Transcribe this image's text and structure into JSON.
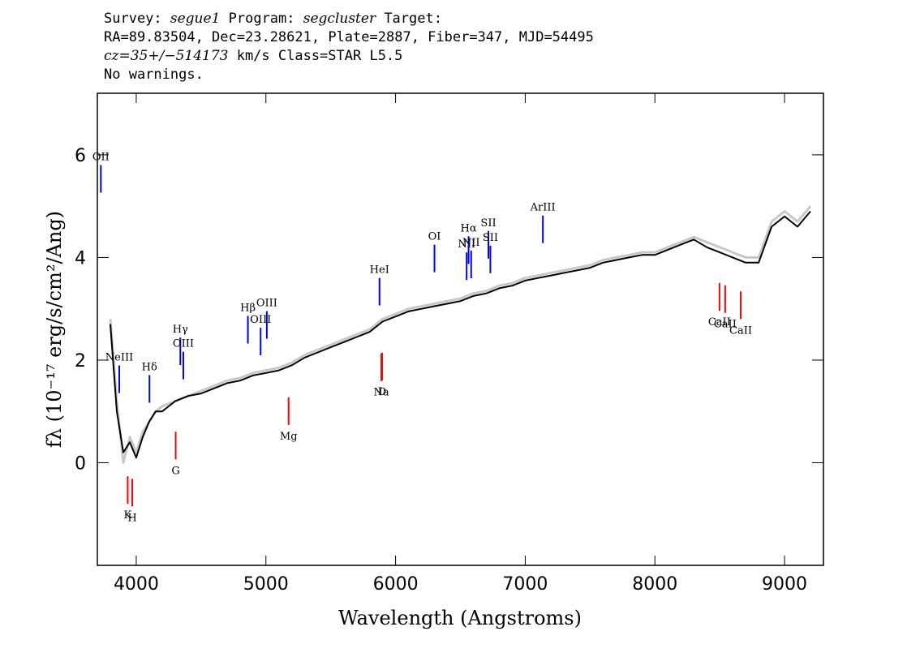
{
  "header": {
    "line1": {
      "survey_label": "Survey: ",
      "survey": "segue1",
      "program_label": " Program: ",
      "program": "segcluster",
      "target_label": " Target:"
    },
    "line2": "RA=89.83504, Dec=23.28621, Plate=2887, Fiber=347, MJD=54495",
    "line3": {
      "cz": "cz=35+/−514173",
      "rest": " km/s Class=STAR L5.5"
    },
    "line4": "No warnings."
  },
  "chart_data": {
    "type": "line",
    "title": "",
    "xlabel": "Wavelength (Angstroms)",
    "ylabel": "fλ (10⁻¹⁷ erg/s/cm²/Ang)",
    "xlim": [
      3700,
      9300
    ],
    "ylim": [
      -2,
      7.2
    ],
    "xticks": [
      4000,
      5000,
      6000,
      7000,
      8000,
      9000
    ],
    "yticks": [
      0,
      2,
      4,
      6
    ],
    "series": [
      {
        "name": "",
        "color": "#c8c8c8",
        "x": [
          3800,
          3850,
          3900,
          3950,
          4000,
          4050,
          4100,
          4150,
          4200,
          4300,
          4400,
          4500,
          4600,
          4700,
          4800,
          4900,
          5000,
          5100,
          5200,
          5300,
          5400,
          5500,
          5600,
          5700,
          5800,
          5900,
          6000,
          6100,
          6200,
          6300,
          6400,
          6500,
          6600,
          6700,
          6800,
          6900,
          7000,
          7100,
          7200,
          7300,
          7400,
          7500,
          7600,
          7700,
          7800,
          7900,
          8000,
          8100,
          8200,
          8300,
          8400,
          8500,
          8600,
          8700,
          8800,
          8900,
          9000,
          9100,
          9200
        ],
        "y": [
          2.8,
          1.2,
          0.0,
          0.5,
          0.2,
          0.6,
          0.8,
          1.0,
          1.1,
          1.2,
          1.3,
          1.4,
          1.5,
          1.6,
          1.65,
          1.75,
          1.8,
          1.85,
          1.95,
          2.1,
          2.2,
          2.3,
          2.4,
          2.5,
          2.6,
          2.8,
          2.9,
          3.0,
          3.05,
          3.1,
          3.15,
          3.2,
          3.3,
          3.35,
          3.45,
          3.5,
          3.6,
          3.65,
          3.7,
          3.75,
          3.8,
          3.85,
          3.95,
          4.0,
          4.05,
          4.1,
          4.1,
          4.2,
          4.3,
          4.4,
          4.3,
          4.2,
          4.1,
          4.0,
          4.0,
          4.7,
          4.9,
          4.7,
          5.0
        ]
      },
      {
        "name": "",
        "color": "#000000",
        "x": [
          3800,
          3850,
          3900,
          3950,
          4000,
          4050,
          4100,
          4150,
          4200,
          4300,
          4400,
          4500,
          4600,
          4700,
          4800,
          4900,
          5000,
          5100,
          5200,
          5300,
          5400,
          5500,
          5600,
          5700,
          5800,
          5900,
          6000,
          6100,
          6200,
          6300,
          6400,
          6500,
          6600,
          6700,
          6800,
          6900,
          7000,
          7100,
          7200,
          7300,
          7400,
          7500,
          7600,
          7700,
          7800,
          7900,
          8000,
          8100,
          8200,
          8300,
          8400,
          8500,
          8600,
          8700,
          8800,
          8900,
          9000,
          9100,
          9200
        ],
        "y": [
          2.7,
          1.0,
          0.2,
          0.4,
          0.1,
          0.5,
          0.8,
          1.0,
          1.0,
          1.2,
          1.3,
          1.35,
          1.45,
          1.55,
          1.6,
          1.7,
          1.75,
          1.8,
          1.9,
          2.05,
          2.15,
          2.25,
          2.35,
          2.45,
          2.55,
          2.75,
          2.85,
          2.95,
          3.0,
          3.05,
          3.1,
          3.15,
          3.25,
          3.3,
          3.4,
          3.45,
          3.55,
          3.6,
          3.65,
          3.7,
          3.75,
          3.8,
          3.9,
          3.95,
          4.0,
          4.05,
          4.05,
          4.15,
          4.25,
          4.35,
          4.2,
          4.1,
          4.0,
          3.9,
          3.9,
          4.6,
          4.8,
          4.6,
          4.9
        ]
      }
    ],
    "emission_lines": [
      {
        "label": "OII",
        "x": 3727
      },
      {
        "label": "NeIII",
        "x": 3869
      },
      {
        "label": "Hδ",
        "x": 4102
      },
      {
        "label": "Hγ",
        "x": 4340
      },
      {
        "label": "OIII",
        "x": 4363
      },
      {
        "label": "Hβ",
        "x": 4861
      },
      {
        "label": "OIII",
        "x": 4959
      },
      {
        "label": "OIII",
        "x": 5007
      },
      {
        "label": "HeI",
        "x": 5876
      },
      {
        "label": "OI",
        "x": 6300
      },
      {
        "label": "NII",
        "x": 6548
      },
      {
        "label": "Hα",
        "x": 6563
      },
      {
        "label": "NII",
        "x": 6583
      },
      {
        "label": "SII",
        "x": 6716
      },
      {
        "label": "SII",
        "x": 6731
      },
      {
        "label": "ArIII",
        "x": 7136
      }
    ],
    "absorption_lines": [
      {
        "label": "K",
        "x": 3934
      },
      {
        "label": "H",
        "x": 3969
      },
      {
        "label": "G",
        "x": 4304
      },
      {
        "label": "Mg",
        "x": 5175
      },
      {
        "label": "Na",
        "x": 5890
      },
      {
        "label": "D",
        "x": 5896
      },
      {
        "label": "CaII",
        "x": 8498
      },
      {
        "label": "CaII",
        "x": 8542
      },
      {
        "label": "CaII",
        "x": 8662
      }
    ],
    "emission_color": "#0000ff",
    "absorption_color": "#ff0000",
    "grid": false,
    "legend": "none"
  }
}
